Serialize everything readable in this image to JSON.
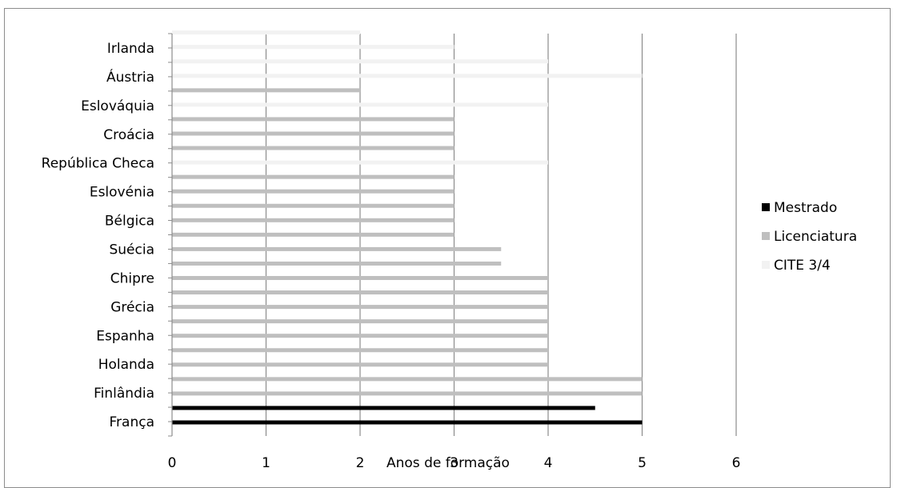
{
  "chart_data": {
    "type": "bar",
    "orientation": "horizontal",
    "xlabel": "Anos de formação",
    "ylabel": "",
    "xlim": [
      0,
      6
    ],
    "xticks": [
      "0",
      "1",
      "2",
      "3",
      "4",
      "5",
      "6"
    ],
    "grid": true,
    "legend_position": "right",
    "categories": [
      "França",
      "Finlândia",
      "Holanda",
      "Espanha",
      "Grécia",
      "Chipre",
      "Suécia",
      "Bélgica",
      "Eslovénia",
      "República Checa",
      "Croácia",
      "Eslováquia",
      "Áustria",
      "Irlanda"
    ],
    "bars": [
      {
        "category": "França",
        "series": "Mestrado",
        "value": 5
      },
      {
        "category": "França",
        "series": "Mestrado",
        "value": 4.5
      },
      {
        "category": "Finlândia",
        "series": "Licenciatura",
        "value": 5
      },
      {
        "category": "Finlândia",
        "series": "Licenciatura",
        "value": 5
      },
      {
        "category": "Holanda",
        "series": "Licenciatura",
        "value": 4
      },
      {
        "category": "Holanda",
        "series": "Licenciatura",
        "value": 4
      },
      {
        "category": "Espanha",
        "series": "Licenciatura",
        "value": 4
      },
      {
        "category": "Espanha",
        "series": "Licenciatura",
        "value": 4
      },
      {
        "category": "Grécia",
        "series": "Licenciatura",
        "value": 4
      },
      {
        "category": "Grécia",
        "series": "Licenciatura",
        "value": 4
      },
      {
        "category": "Chipre",
        "series": "Licenciatura",
        "value": 4
      },
      {
        "category": "Chipre",
        "series": "Licenciatura",
        "value": 3.5
      },
      {
        "category": "Suécia",
        "series": "Licenciatura",
        "value": 3.5
      },
      {
        "category": "Suécia",
        "series": "Licenciatura",
        "value": 3
      },
      {
        "category": "Bélgica",
        "series": "Licenciatura",
        "value": 3
      },
      {
        "category": "Bélgica",
        "series": "Licenciatura",
        "value": 3
      },
      {
        "category": "Eslovénia",
        "series": "Licenciatura",
        "value": 3
      },
      {
        "category": "Eslovénia",
        "series": "Licenciatura",
        "value": 3
      },
      {
        "category": "República Checa",
        "series": "CITE 3/4",
        "value": 4
      },
      {
        "category": "República Checa",
        "series": "Licenciatura",
        "value": 3
      },
      {
        "category": "Croácia",
        "series": "Licenciatura",
        "value": 3
      },
      {
        "category": "Croácia",
        "series": "Licenciatura",
        "value": 3
      },
      {
        "category": "Eslováquia",
        "series": "CITE 3/4",
        "value": 4
      },
      {
        "category": "Eslováquia",
        "series": "Licenciatura",
        "value": 2
      },
      {
        "category": "Áustria",
        "series": "CITE 3/4",
        "value": 5
      },
      {
        "category": "Áustria",
        "series": "CITE 3/4",
        "value": 4
      },
      {
        "category": "Irlanda",
        "series": "CITE 3/4",
        "value": 3
      },
      {
        "category": "Irlanda",
        "series": "CITE 3/4",
        "value": 2
      }
    ],
    "legend": [
      {
        "name": "Mestrado",
        "color": "#000000"
      },
      {
        "name": "Licenciatura",
        "color": "#bfbfbf"
      },
      {
        "name": "CITE 3/4",
        "color": "#f2f2f2"
      }
    ]
  }
}
